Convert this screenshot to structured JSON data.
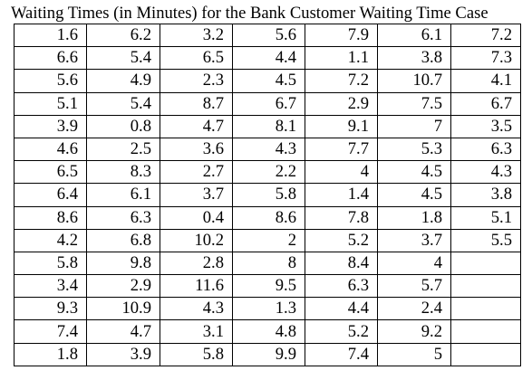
{
  "caption": "Waiting Times (in Minutes) for the Bank Customer Waiting Time Case",
  "rows": [
    [
      "1.6",
      "6.2",
      "3.2",
      "5.6",
      "7.9",
      "6.1",
      "7.2"
    ],
    [
      "6.6",
      "5.4",
      "6.5",
      "4.4",
      "1.1",
      "3.8",
      "7.3"
    ],
    [
      "5.6",
      "4.9",
      "2.3",
      "4.5",
      "7.2",
      "10.7",
      "4.1"
    ],
    [
      "5.1",
      "5.4",
      "8.7",
      "6.7",
      "2.9",
      "7.5",
      "6.7"
    ],
    [
      "3.9",
      "0.8",
      "4.7",
      "8.1",
      "9.1",
      "7",
      "3.5"
    ],
    [
      "4.6",
      "2.5",
      "3.6",
      "4.3",
      "7.7",
      "5.3",
      "6.3"
    ],
    [
      "6.5",
      "8.3",
      "2.7",
      "2.2",
      "4",
      "4.5",
      "4.3"
    ],
    [
      "6.4",
      "6.1",
      "3.7",
      "5.8",
      "1.4",
      "4.5",
      "3.8"
    ],
    [
      "8.6",
      "6.3",
      "0.4",
      "8.6",
      "7.8",
      "1.8",
      "5.1"
    ],
    [
      "4.2",
      "6.8",
      "10.2",
      "2",
      "5.2",
      "3.7",
      "5.5"
    ],
    [
      "5.8",
      "9.8",
      "2.8",
      "8",
      "8.4",
      "4",
      ""
    ],
    [
      "3.4",
      "2.9",
      "11.6",
      "9.5",
      "6.3",
      "5.7",
      ""
    ],
    [
      "9.3",
      "10.9",
      "4.3",
      "1.3",
      "4.4",
      "2.4",
      ""
    ],
    [
      "7.4",
      "4.7",
      "3.1",
      "4.8",
      "5.2",
      "9.2",
      ""
    ],
    [
      "1.8",
      "3.9",
      "5.8",
      "9.9",
      "7.4",
      "5",
      ""
    ]
  ]
}
